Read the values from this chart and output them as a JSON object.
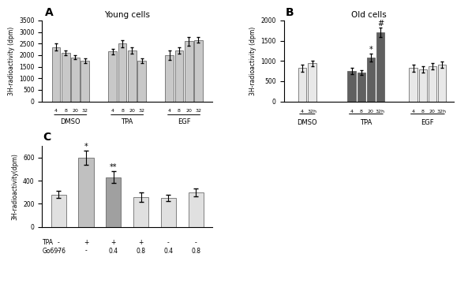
{
  "A": {
    "title": "Young cells",
    "ylabel": "3H-radioactivity (dpm)",
    "ylim": [
      0,
      3500
    ],
    "yticks": [
      0,
      500,
      1000,
      1500,
      2000,
      2500,
      3000,
      3500
    ],
    "groups": [
      "DMSO",
      "TPA",
      "EGF"
    ],
    "timepoints": [
      "4",
      "8",
      "20",
      "32"
    ],
    "values": {
      "DMSO": [
        2350,
        2100,
        1900,
        1750
      ],
      "TPA": [
        2150,
        2500,
        2200,
        1750
      ],
      "EGF": [
        2000,
        2200,
        2600,
        2650
      ]
    },
    "errors": {
      "DMSO": [
        150,
        100,
        80,
        100
      ],
      "TPA": [
        120,
        150,
        120,
        100
      ],
      "EGF": [
        200,
        150,
        180,
        120
      ]
    },
    "bar_color": "#c8c8c8",
    "bar_edge": "#555555"
  },
  "B": {
    "title": "Old cells",
    "ylabel": "3H-radioactivity (dpm)",
    "ylim": [
      0,
      2000
    ],
    "yticks": [
      0,
      500,
      1000,
      1500,
      2000
    ],
    "dmso_timepoints": [
      "4",
      "32h"
    ],
    "tpa_timepoints": [
      "4",
      "8",
      "20",
      "32h"
    ],
    "egf_timepoints": [
      "4",
      "8",
      "20",
      "32h"
    ],
    "dmso_values": [
      820,
      940
    ],
    "tpa_values": [
      750,
      720,
      1080,
      1700
    ],
    "egf_values": [
      820,
      790,
      870,
      900
    ],
    "dmso_errors": [
      80,
      70
    ],
    "tpa_errors": [
      70,
      60,
      100,
      120
    ],
    "egf_errors": [
      90,
      70,
      80,
      80
    ],
    "dmso_color": "#e8e8e8",
    "tpa_color": "#606060",
    "egf_color": "#e8e8e8",
    "bar_edge": "#555555"
  },
  "C": {
    "ylabel": "3H-radioactivity(dpm)",
    "ylim": [
      0,
      700
    ],
    "yticks": [
      0,
      200,
      400,
      600
    ],
    "tpa_row": [
      "-",
      "+",
      "+",
      "+",
      "-",
      "-"
    ],
    "go6976_row": [
      "-",
      "-",
      "0.4",
      "0.8",
      "0.4",
      "0.8"
    ],
    "values": [
      280,
      600,
      430,
      260,
      250,
      300
    ],
    "errors": [
      30,
      60,
      50,
      40,
      25,
      35
    ],
    "colors": [
      "#e0e0e0",
      "#c0c0c0",
      "#a0a0a0",
      "#e0e0e0",
      "#e0e0e0",
      "#e0e0e0"
    ],
    "bar_edge": "#555555"
  }
}
